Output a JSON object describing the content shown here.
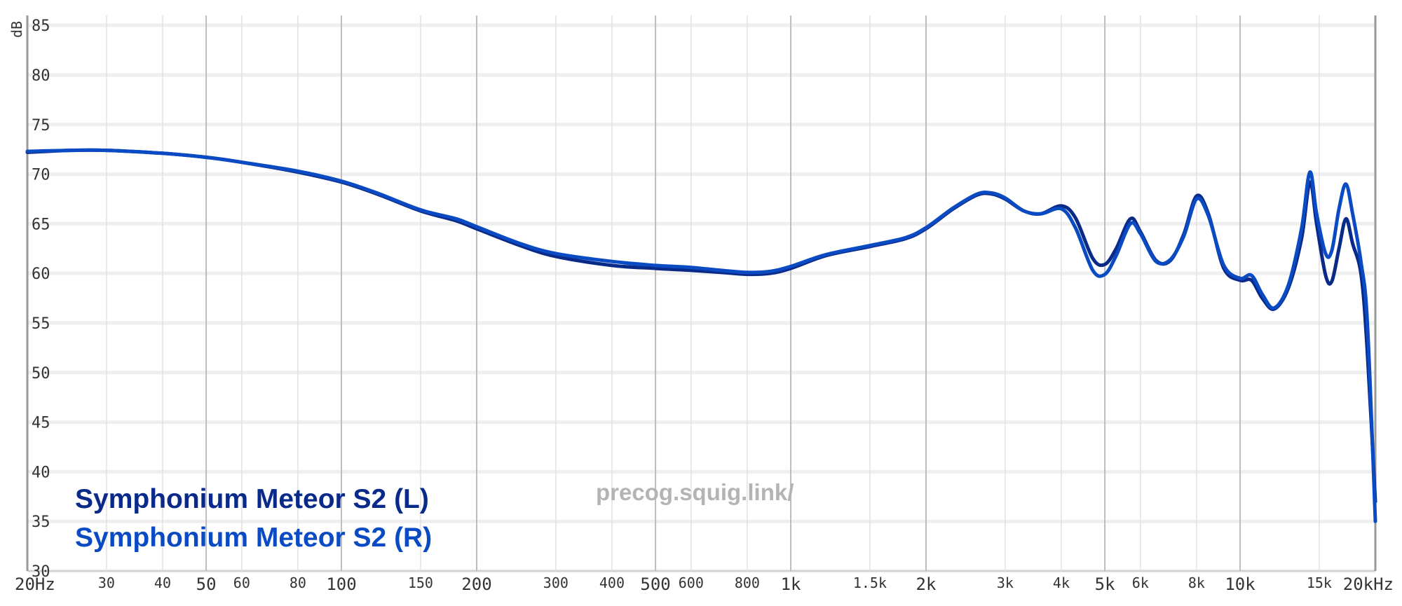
{
  "chart_data": {
    "type": "line",
    "x_scale": "log",
    "xlim": [
      20,
      20000
    ],
    "ylim": [
      30,
      86
    ],
    "ylabel": "dB",
    "grid": true,
    "x_ticks": [
      {
        "value": 20,
        "label": "20Hz",
        "major": true
      },
      {
        "value": 30,
        "label": "30",
        "major": false
      },
      {
        "value": 40,
        "label": "40",
        "major": false
      },
      {
        "value": 50,
        "label": "50",
        "major": true
      },
      {
        "value": 60,
        "label": "60",
        "major": false
      },
      {
        "value": 80,
        "label": "80",
        "major": false
      },
      {
        "value": 100,
        "label": "100",
        "major": true
      },
      {
        "value": 150,
        "label": "150",
        "major": false
      },
      {
        "value": 200,
        "label": "200",
        "major": true
      },
      {
        "value": 300,
        "label": "300",
        "major": false
      },
      {
        "value": 400,
        "label": "400",
        "major": false
      },
      {
        "value": 500,
        "label": "500",
        "major": true
      },
      {
        "value": 600,
        "label": "600",
        "major": false
      },
      {
        "value": 800,
        "label": "800",
        "major": false
      },
      {
        "value": 1000,
        "label": "1k",
        "major": true
      },
      {
        "value": 1500,
        "label": "1.5k",
        "major": false
      },
      {
        "value": 2000,
        "label": "2k",
        "major": true
      },
      {
        "value": 3000,
        "label": "3k",
        "major": false
      },
      {
        "value": 4000,
        "label": "4k",
        "major": false
      },
      {
        "value": 5000,
        "label": "5k",
        "major": true
      },
      {
        "value": 6000,
        "label": "6k",
        "major": false
      },
      {
        "value": 8000,
        "label": "8k",
        "major": false
      },
      {
        "value": 10000,
        "label": "10k",
        "major": true
      },
      {
        "value": 15000,
        "label": "15k",
        "major": false
      },
      {
        "value": 20000,
        "label": "20kHz",
        "major": true
      }
    ],
    "y_ticks": [
      85,
      80,
      75,
      70,
      65,
      60,
      55,
      50,
      45,
      40,
      35,
      30
    ],
    "legend": [
      {
        "label": "Symphonium Meteor S2 (L)",
        "color": "#0a2a8a"
      },
      {
        "label": "Symphonium Meteor S2 (R)",
        "color": "#0a4bc4"
      }
    ],
    "legend_placement": "bottom-left",
    "watermark": "precog.squig.link/",
    "series": [
      {
        "color": "#0a2a8a",
        "points": [
          [
            20,
            72.2
          ],
          [
            25,
            72.4
          ],
          [
            30,
            72.4
          ],
          [
            40,
            72.1
          ],
          [
            50,
            71.7
          ],
          [
            60,
            71.2
          ],
          [
            80,
            70.2
          ],
          [
            100,
            69.2
          ],
          [
            120,
            68.0
          ],
          [
            150,
            66.3
          ],
          [
            180,
            65.3
          ],
          [
            200,
            64.5
          ],
          [
            250,
            62.8
          ],
          [
            300,
            61.7
          ],
          [
            400,
            60.8
          ],
          [
            500,
            60.5
          ],
          [
            600,
            60.3
          ],
          [
            700,
            60.1
          ],
          [
            800,
            59.9
          ],
          [
            900,
            60.0
          ],
          [
            1000,
            60.5
          ],
          [
            1200,
            61.8
          ],
          [
            1500,
            62.7
          ],
          [
            1800,
            63.5
          ],
          [
            2000,
            64.5
          ],
          [
            2300,
            66.5
          ],
          [
            2600,
            67.9
          ],
          [
            2800,
            68.0
          ],
          [
            3000,
            67.5
          ],
          [
            3300,
            66.3
          ],
          [
            3600,
            66.0
          ],
          [
            4000,
            66.8
          ],
          [
            4300,
            65.6
          ],
          [
            4700,
            61.5
          ],
          [
            5000,
            60.9
          ],
          [
            5300,
            62.5
          ],
          [
            5700,
            65.5
          ],
          [
            6000,
            64.2
          ],
          [
            6500,
            61.3
          ],
          [
            7000,
            61.3
          ],
          [
            7500,
            64.0
          ],
          [
            8000,
            67.8
          ],
          [
            8500,
            66.0
          ],
          [
            9200,
            60.5
          ],
          [
            10000,
            59.3
          ],
          [
            10600,
            59.3
          ],
          [
            11200,
            57.5
          ],
          [
            11900,
            56.4
          ],
          [
            12800,
            58.5
          ],
          [
            13700,
            63.5
          ],
          [
            14300,
            69.2
          ],
          [
            14800,
            65.0
          ],
          [
            15500,
            59.8
          ],
          [
            16000,
            59.2
          ],
          [
            16600,
            62.5
          ],
          [
            17200,
            65.5
          ],
          [
            17800,
            63.0
          ],
          [
            18600,
            59.8
          ],
          [
            19200,
            52.0
          ],
          [
            20000,
            37.0
          ]
        ]
      },
      {
        "color": "#0a4bc4",
        "points": [
          [
            20,
            72.3
          ],
          [
            25,
            72.4
          ],
          [
            30,
            72.4
          ],
          [
            40,
            72.1
          ],
          [
            50,
            71.7
          ],
          [
            60,
            71.2
          ],
          [
            80,
            70.3
          ],
          [
            100,
            69.3
          ],
          [
            120,
            68.1
          ],
          [
            150,
            66.4
          ],
          [
            180,
            65.5
          ],
          [
            200,
            64.7
          ],
          [
            250,
            63.0
          ],
          [
            300,
            62.0
          ],
          [
            400,
            61.2
          ],
          [
            500,
            60.8
          ],
          [
            600,
            60.6
          ],
          [
            700,
            60.3
          ],
          [
            800,
            60.1
          ],
          [
            900,
            60.2
          ],
          [
            1000,
            60.7
          ],
          [
            1200,
            61.9
          ],
          [
            1500,
            62.8
          ],
          [
            1800,
            63.6
          ],
          [
            2000,
            64.6
          ],
          [
            2300,
            66.6
          ],
          [
            2600,
            68.0
          ],
          [
            2800,
            68.1
          ],
          [
            3000,
            67.6
          ],
          [
            3300,
            66.3
          ],
          [
            3600,
            66.0
          ],
          [
            4000,
            66.5
          ],
          [
            4300,
            64.6
          ],
          [
            4700,
            60.3
          ],
          [
            5000,
            59.9
          ],
          [
            5300,
            61.8
          ],
          [
            5700,
            65.0
          ],
          [
            6000,
            64.0
          ],
          [
            6500,
            61.2
          ],
          [
            7000,
            61.4
          ],
          [
            7500,
            63.8
          ],
          [
            8000,
            67.5
          ],
          [
            8500,
            65.8
          ],
          [
            9200,
            60.8
          ],
          [
            10000,
            59.5
          ],
          [
            10600,
            59.8
          ],
          [
            11200,
            57.9
          ],
          [
            11900,
            56.5
          ],
          [
            12800,
            58.8
          ],
          [
            13700,
            64.5
          ],
          [
            14300,
            70.2
          ],
          [
            14800,
            66.0
          ],
          [
            15500,
            62.0
          ],
          [
            16000,
            62.3
          ],
          [
            16600,
            66.5
          ],
          [
            17200,
            69.0
          ],
          [
            17800,
            66.0
          ],
          [
            18600,
            61.0
          ],
          [
            19200,
            55.0
          ],
          [
            20000,
            35.0
          ]
        ]
      }
    ]
  }
}
